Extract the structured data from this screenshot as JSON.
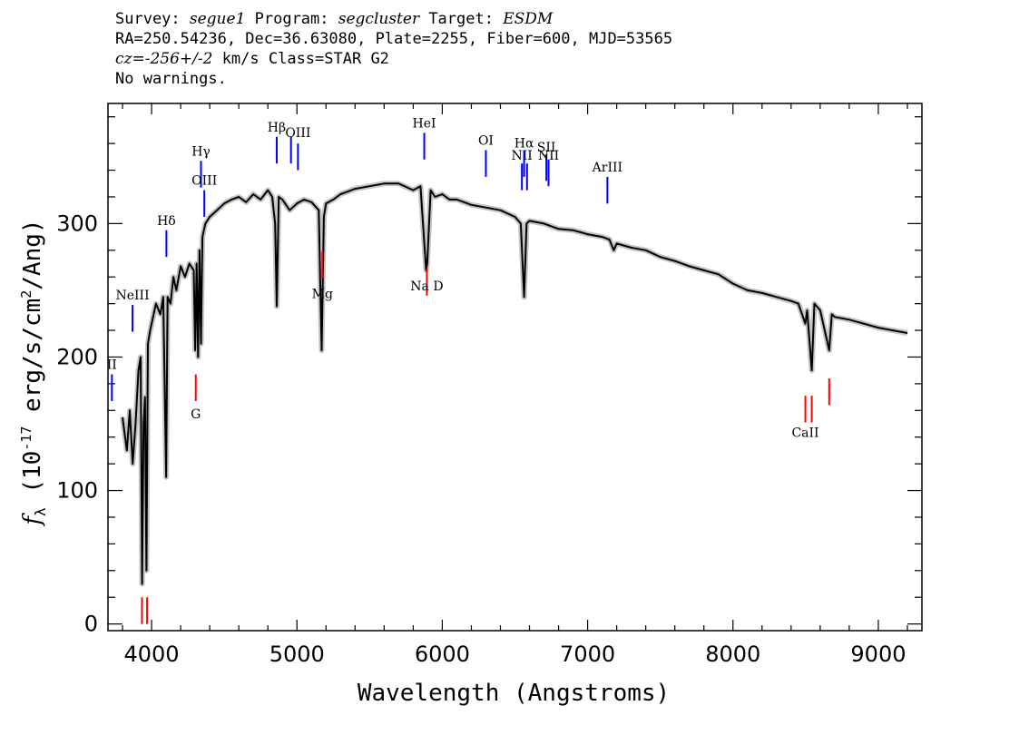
{
  "header": {
    "line1": {
      "survey_label": "Survey: ",
      "survey_value": "segue1",
      "program_label": " Program: ",
      "program_value": "segcluster",
      "target_label": " Target: ",
      "target_value": "ESDM"
    },
    "line2": "RA=250.54236, Dec=36.63080, Plate=2255, Fiber=600, MJD=53565",
    "line3": {
      "cz_value": "cz=-256+/-2",
      "rest": " km/s Class=STAR G2"
    },
    "line4": "No warnings."
  },
  "colors": {
    "emission": "#0000ff",
    "absorption": "#ff0000",
    "spectrum": "#000000",
    "error_band": "#bdbdbd"
  },
  "chart_data": {
    "type": "line",
    "title": "",
    "xlabel": "Wavelength (Angstroms)",
    "ylabel": "f_λ (10^-17 erg/s/cm^2/Ang)",
    "xlim": [
      3700,
      9300
    ],
    "ylim": [
      -5,
      390
    ],
    "xticks": [
      4000,
      5000,
      6000,
      7000,
      8000,
      9000
    ],
    "yticks": [
      0,
      100,
      200,
      300
    ],
    "grid": false,
    "series": [
      {
        "x": [
          3800,
          3830,
          3850,
          3870,
          3890,
          3910,
          3925,
          3935,
          3945,
          3955,
          3965,
          3975,
          3990,
          4010,
          4030,
          4060,
          4080,
          4100,
          4110,
          4130,
          4150,
          4170,
          4200,
          4230,
          4260,
          4290,
          4300,
          4310,
          4320,
          4330,
          4340,
          4350,
          4370,
          4400,
          4450,
          4500,
          4550,
          4600,
          4650,
          4700,
          4750,
          4800,
          4830,
          4850,
          4861,
          4875,
          4900,
          4950,
          5000,
          5050,
          5100,
          5150,
          5170,
          5185,
          5200,
          5250,
          5300,
          5400,
          5500,
          5600,
          5700,
          5800,
          5850,
          5889,
          5896,
          5920,
          5950,
          6000,
          6050,
          6100,
          6150,
          6200,
          6300,
          6400,
          6500,
          6540,
          6563,
          6580,
          6600,
          6700,
          6800,
          6900,
          7000,
          7100,
          7150,
          7180,
          7200,
          7300,
          7400,
          7500,
          7600,
          7700,
          7800,
          7900,
          8000,
          8100,
          8200,
          8300,
          8400,
          8450,
          8498,
          8510,
          8542,
          8560,
          8600,
          8662,
          8680,
          8700,
          8800,
          8900,
          9000,
          9100,
          9200
        ],
        "y": [
          155,
          130,
          160,
          120,
          150,
          190,
          200,
          30,
          150,
          170,
          40,
          210,
          220,
          230,
          240,
          232,
          245,
          110,
          245,
          240,
          260,
          250,
          268,
          260,
          270,
          265,
          205,
          270,
          200,
          280,
          210,
          290,
          300,
          305,
          310,
          315,
          318,
          320,
          316,
          322,
          318,
          325,
          320,
          300,
          238,
          320,
          318,
          310,
          315,
          318,
          316,
          310,
          205,
          305,
          315,
          318,
          322,
          326,
          328,
          330,
          330,
          325,
          328,
          265,
          270,
          325,
          320,
          322,
          318,
          318,
          316,
          314,
          312,
          310,
          305,
          300,
          245,
          300,
          302,
          300,
          296,
          295,
          292,
          290,
          288,
          280,
          285,
          282,
          280,
          275,
          272,
          268,
          265,
          262,
          255,
          250,
          248,
          245,
          242,
          240,
          225,
          235,
          190,
          240,
          235,
          205,
          232,
          230,
          228,
          225,
          222,
          220,
          218
        ]
      }
    ],
    "lines": [
      {
        "label": "NeIII",
        "x": 3869,
        "kind": "emission",
        "yrange": [
          219,
          239
        ],
        "label_y": 243
      },
      {
        "label": "II",
        "x": 3727,
        "kind": "emission",
        "yrange": [
          167,
          187
        ],
        "label_y": 191
      },
      {
        "label": "Hδ",
        "x": 4102,
        "kind": "emission",
        "yrange": [
          275,
          295
        ],
        "label_y": 299
      },
      {
        "label": "Hγ",
        "x": 4340,
        "kind": "emission",
        "yrange": [
          327,
          347
        ],
        "label_y": 351
      },
      {
        "label": "OIII",
        "x": 4363,
        "kind": "emission",
        "yrange": [
          305,
          325
        ],
        "label_y": 329
      },
      {
        "label": "Hβ",
        "x": 4861,
        "kind": "emission",
        "yrange": [
          345,
          365
        ],
        "label_y": 369
      },
      {
        "label": "OIII",
        "x": 4959,
        "kind": "emission",
        "yrange": [
          345,
          365
        ],
        "label_y": null
      },
      {
        "label": "OIII",
        "x": 5007,
        "kind": "emission",
        "yrange": [
          340,
          360
        ],
        "label_y": 365
      },
      {
        "label": "HeI",
        "x": 5876,
        "kind": "emission",
        "yrange": [
          348,
          368
        ],
        "label_y": 372
      },
      {
        "label": "OI",
        "x": 6300,
        "kind": "emission",
        "yrange": [
          335,
          355
        ],
        "label_y": 359
      },
      {
        "label": "NII",
        "x": 6548,
        "kind": "emission",
        "yrange": [
          325,
          345
        ],
        "label_y": 348
      },
      {
        "label": "Hα",
        "x": 6563,
        "kind": "emission",
        "yrange": [
          335,
          355
        ],
        "label_y": 357
      },
      {
        "label": "NII",
        "x": 6583,
        "kind": "emission",
        "yrange": [
          325,
          345
        ],
        "label_y": null
      },
      {
        "label": "SII",
        "x": 6716,
        "kind": "emission",
        "yrange": [
          332,
          352
        ],
        "label_y": 354
      },
      {
        "label": "NII",
        "x": 6731,
        "kind": "emission",
        "yrange": [
          328,
          348
        ],
        "label_y": 348
      },
      {
        "label": "ArIII",
        "x": 7136,
        "kind": "emission",
        "yrange": [
          315,
          335
        ],
        "label_y": 339
      },
      {
        "label": "",
        "x": 3934,
        "kind": "absorption",
        "yrange": [
          0,
          20
        ],
        "label_y": null
      },
      {
        "label": "",
        "x": 3969,
        "kind": "absorption",
        "yrange": [
          0,
          20
        ],
        "label_y": null
      },
      {
        "label": "G",
        "x": 4304,
        "kind": "absorption",
        "yrange": [
          167,
          187
        ],
        "label_y": 154
      },
      {
        "label": "Mg",
        "x": 5175,
        "kind": "absorption",
        "yrange": [
          259,
          279
        ],
        "label_y": 244
      },
      {
        "label": "Na D",
        "x": 5894,
        "kind": "absorption",
        "yrange": [
          246,
          266
        ],
        "label_y": 250
      },
      {
        "label": "CaII",
        "x": 8498,
        "kind": "absorption",
        "yrange": [
          151,
          171
        ],
        "label_y": 140
      },
      {
        "label": "",
        "x": 8542,
        "kind": "absorption",
        "yrange": [
          151,
          171
        ],
        "label_y": null
      },
      {
        "label": "",
        "x": 8662,
        "kind": "absorption",
        "yrange": [
          164,
          184
        ],
        "label_y": null
      }
    ]
  }
}
